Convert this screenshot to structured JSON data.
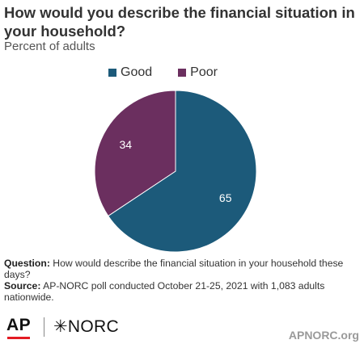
{
  "header": {
    "title": "How would you describe the financial situation in your household?",
    "subtitle": "Percent of adults"
  },
  "chart_data": {
    "type": "pie",
    "title": "How would you describe the financial situation in your household?",
    "subtitle": "Percent of adults",
    "legend_position": "top",
    "series": [
      {
        "name": "Good",
        "value": 65,
        "color": "#1c5a7a"
      },
      {
        "name": "Poor",
        "value": 34,
        "color": "#6b2f5f"
      }
    ]
  },
  "notes": {
    "question_label": "Question:",
    "question_text": "How would describe the financial situation in your household these days?",
    "source_label": "Source:",
    "source_text": "AP-NORC poll conducted October 21-25, 2021 with 1,083 adults nationwide."
  },
  "footer": {
    "ap_logo": "AP",
    "norc_logo": "✳NORC",
    "site": "APNORC.org"
  }
}
